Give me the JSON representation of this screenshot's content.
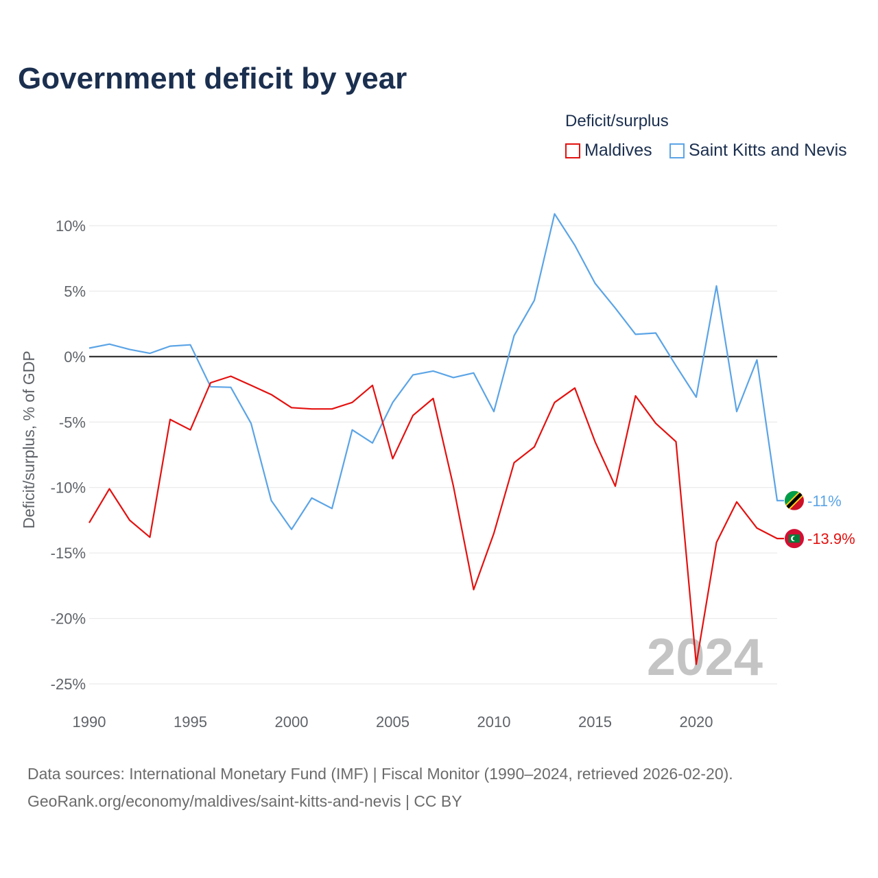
{
  "chart_data": {
    "type": "line",
    "title": "Government deficit by year",
    "xlabel": "",
    "ylabel": "Deficit/surplus, % of GDP",
    "legend_title": "Deficit/surplus",
    "legend_position": "top-right",
    "xlim": [
      1990,
      2024
    ],
    "ylim": [
      -25,
      10
    ],
    "x_ticks": [
      1990,
      1995,
      2000,
      2005,
      2010,
      2015,
      2020
    ],
    "y_ticks": [
      10,
      5,
      0,
      -5,
      -10,
      -15,
      -20,
      -25
    ],
    "y_tick_labels": [
      "10%",
      "5%",
      "0%",
      "-5%",
      "-10%",
      "-15%",
      "-20%",
      "-25%"
    ],
    "zero_line": true,
    "grid": true,
    "year_watermark": "2024",
    "x": [
      1990,
      1991,
      1992,
      1993,
      1994,
      1995,
      1996,
      1997,
      1998,
      1999,
      2000,
      2001,
      2002,
      2003,
      2004,
      2005,
      2006,
      2007,
      2008,
      2009,
      2010,
      2011,
      2012,
      2013,
      2014,
      2015,
      2016,
      2017,
      2018,
      2019,
      2020,
      2021,
      2022,
      2023,
      2024
    ],
    "series": [
      {
        "name": "Maldives",
        "color": "#e3110f",
        "end_label": "-13.9%",
        "flag_icon": "maldives-flag-icon",
        "values": [
          -12.7,
          -10.1,
          -12.5,
          -13.8,
          -4.8,
          -5.6,
          -2.0,
          -1.5,
          -2.2,
          -2.9,
          -3.9,
          -4.0,
          -4.0,
          -3.5,
          -2.2,
          -7.8,
          -4.5,
          -3.2,
          -9.9,
          -17.8,
          -13.5,
          -8.1,
          -6.9,
          -3.5,
          -2.4,
          -6.5,
          -9.9,
          -3.0,
          -5.1,
          -6.5,
          -23.5,
          -14.2,
          -11.1,
          -13.1,
          -13.9
        ]
      },
      {
        "name": "Saint Kitts and Nevis",
        "color": "#5ba4e6",
        "end_label": "-11%",
        "flag_icon": "saint-kitts-and-nevis-flag-icon",
        "values": [
          0.65,
          0.95,
          0.55,
          0.25,
          0.8,
          0.9,
          -2.3,
          -2.35,
          -5.1,
          -11.0,
          -13.2,
          -10.8,
          -11.6,
          -5.6,
          -6.6,
          -3.5,
          -1.4,
          -1.1,
          -1.6,
          -1.25,
          -4.2,
          1.6,
          4.3,
          10.9,
          8.5,
          5.6,
          3.7,
          1.7,
          1.8,
          -0.7,
          -3.1,
          5.4,
          -4.2,
          -0.25,
          -11.0
        ]
      }
    ]
  },
  "source": {
    "line1": "Data sources: International Monetary Fund (IMF) | Fiscal Monitor (1990–2024, retrieved 2026-02-20).",
    "line2": "GeoRank.org/economy/maldives/saint-kitts-and-nevis | CC BY"
  }
}
